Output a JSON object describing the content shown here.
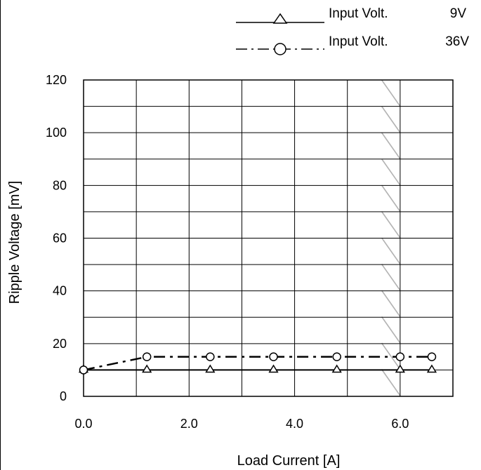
{
  "chart_data": {
    "type": "line",
    "title": "",
    "xlabel": "Load Current  [A]",
    "ylabel": "Ripple Voltage  [mV]",
    "xlim": [
      0,
      7.0
    ],
    "ylim": [
      0,
      120
    ],
    "x_ticks": [
      0,
      1,
      2,
      3,
      4,
      5,
      6,
      7
    ],
    "x_tick_labels": [
      "0.0",
      "",
      "2.0",
      "",
      "4.0",
      "",
      "6.0",
      ""
    ],
    "y_ticks": [
      0,
      10,
      20,
      30,
      40,
      50,
      60,
      70,
      80,
      90,
      100,
      110,
      120
    ],
    "y_tick_labels": [
      "0",
      "",
      "20",
      "",
      "40",
      "",
      "60",
      "",
      "80",
      "",
      "100",
      "",
      "120"
    ],
    "grid": true,
    "legend_position": "top-right",
    "hatched_region": [
      5.65,
      6.0
    ],
    "series": [
      {
        "name": "Input Volt.",
        "legend_value": "9V",
        "marker": "triangle",
        "line_style": "solid",
        "x": [
          0.0,
          1.2,
          2.4,
          3.6,
          4.8,
          6.0,
          6.6
        ],
        "values": [
          10,
          10,
          10,
          10,
          10,
          10,
          10
        ]
      },
      {
        "name": "Input Volt.",
        "legend_value": "36V",
        "marker": "circle",
        "line_style": "dashdot",
        "x": [
          0.0,
          1.2,
          2.4,
          3.6,
          4.8,
          6.0,
          6.6
        ],
        "values": [
          10,
          15,
          15,
          15,
          15,
          15,
          15
        ]
      }
    ]
  }
}
